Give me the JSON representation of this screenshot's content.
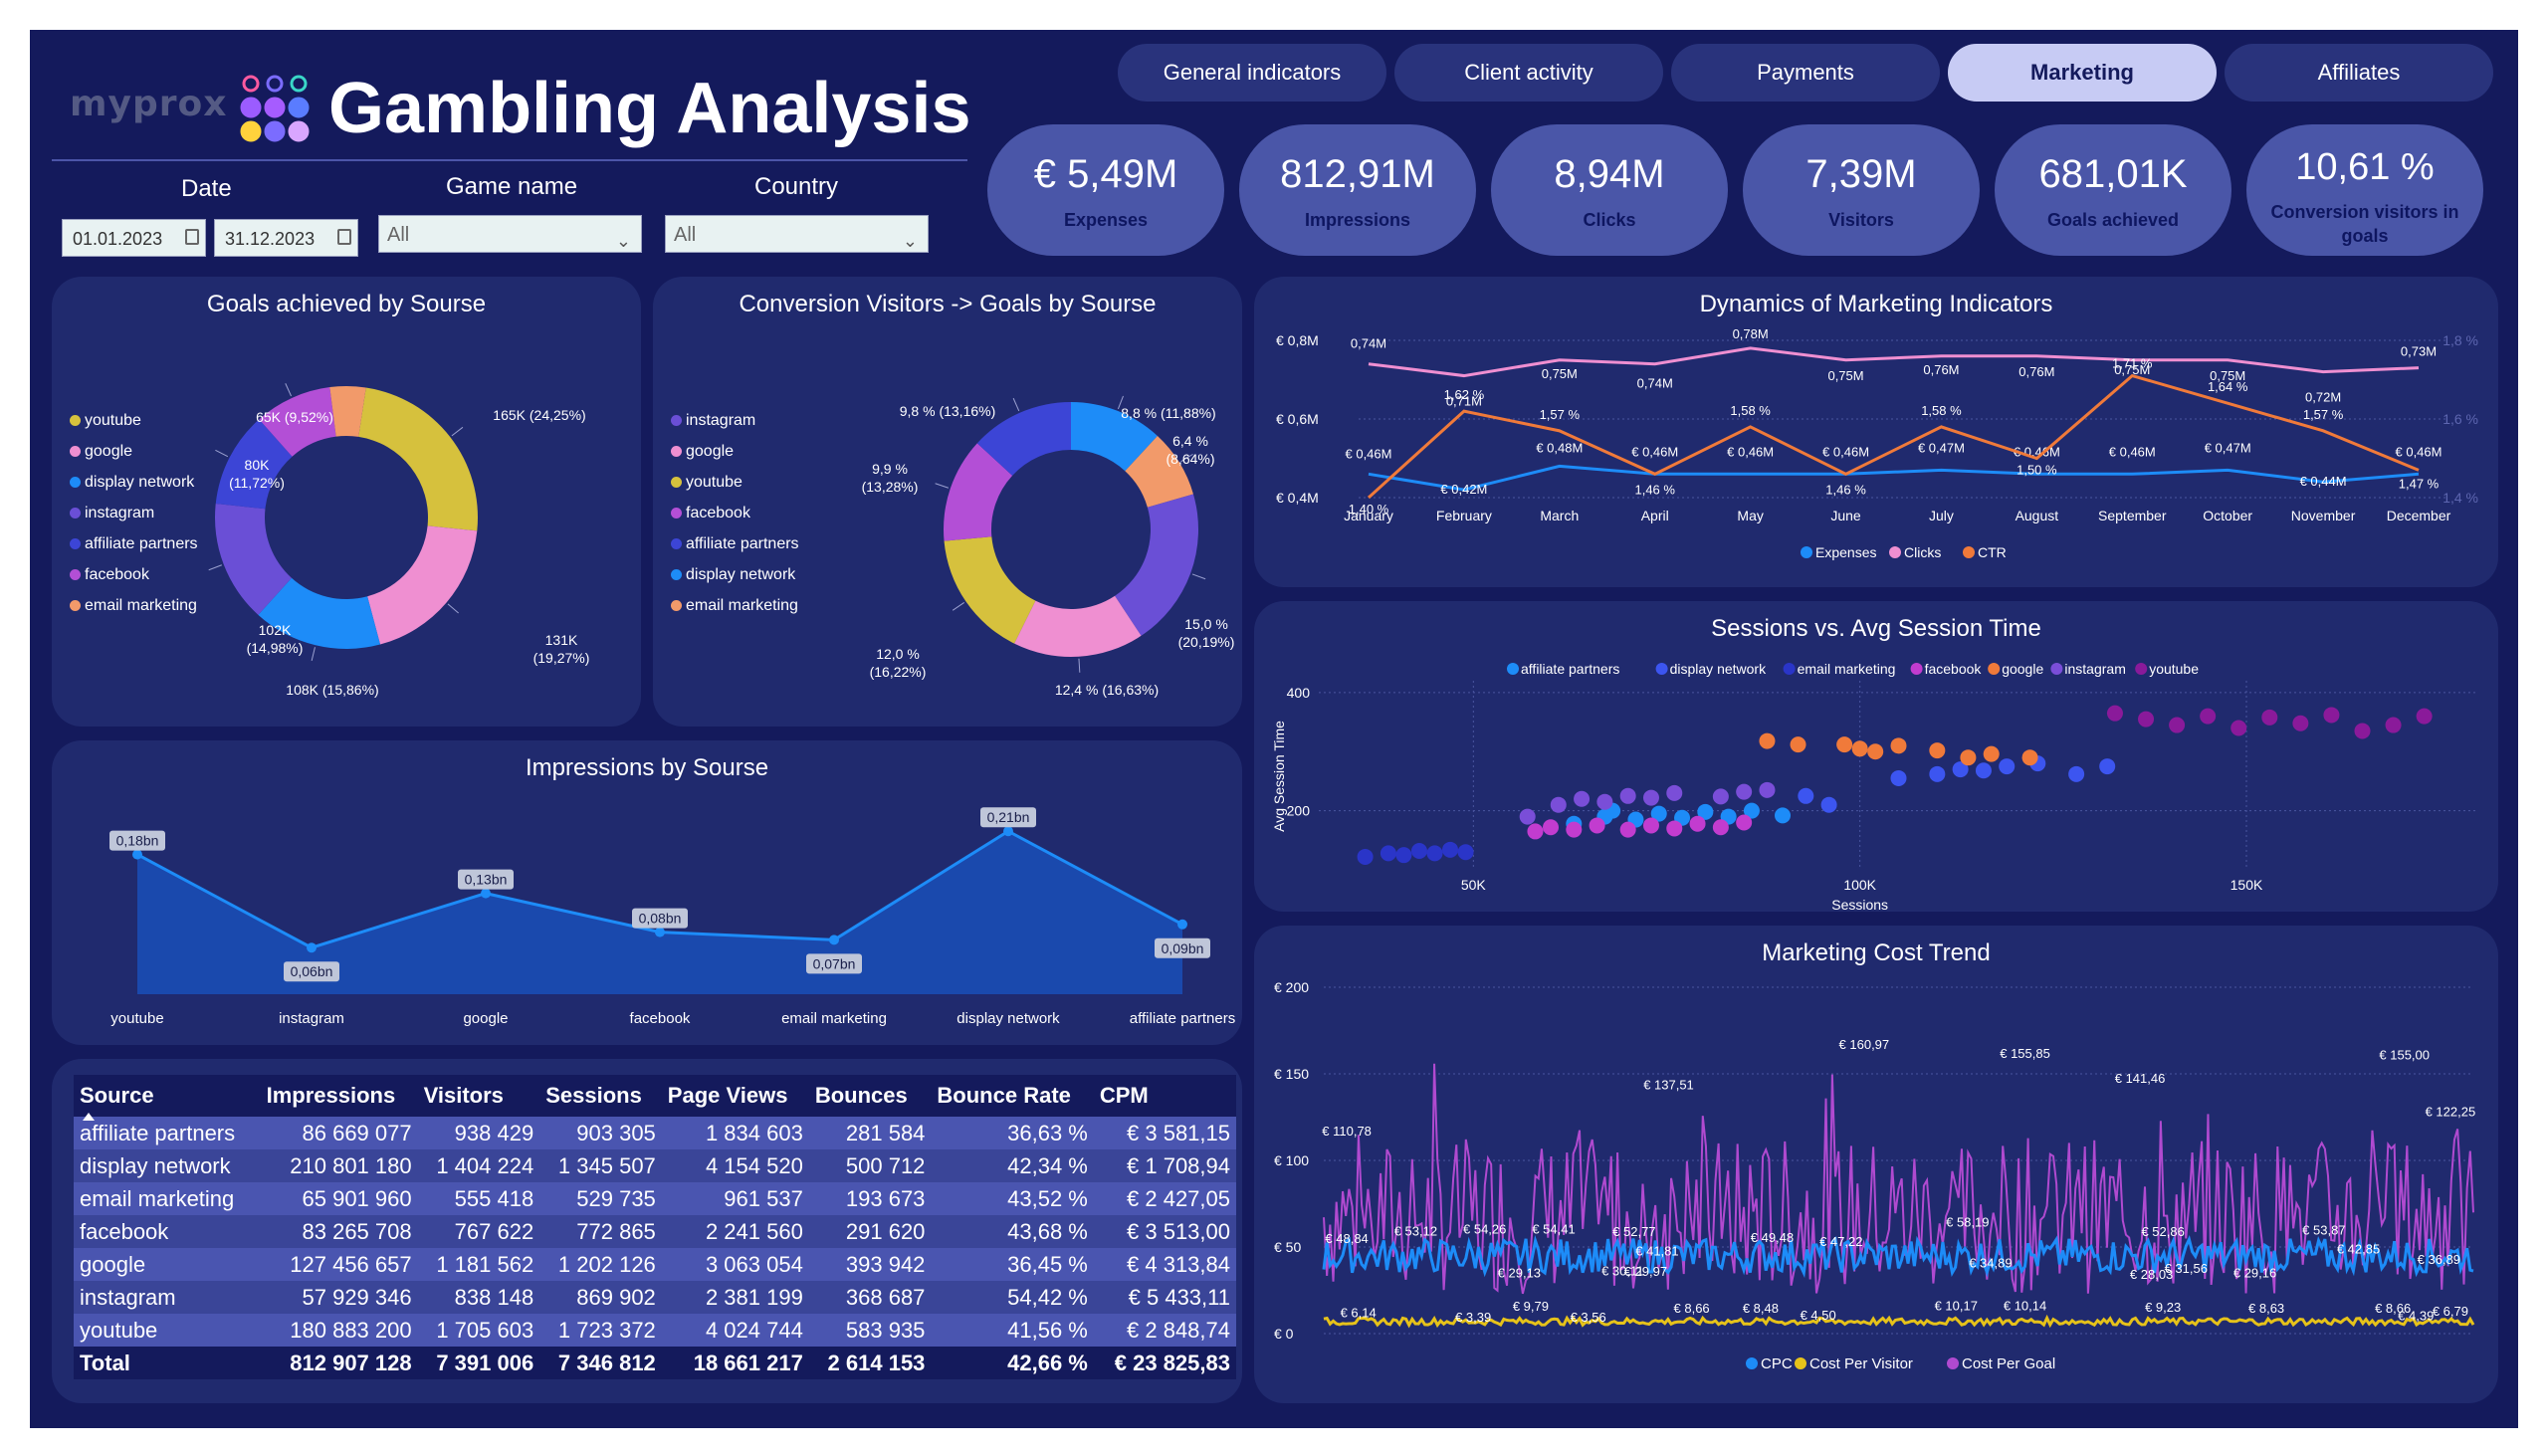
{
  "header": {
    "logo": "myprox",
    "title": "Gambling Analysis",
    "logo_dot_colors": [
      "#ff5aa0",
      "#7b6cff",
      "#3ad6c8",
      "#9b5cff",
      "#a65cff",
      "#5a7cff",
      "#ffd23c",
      "#7b6cff",
      "#d9a6ff"
    ]
  },
  "filters": {
    "date_label": "Date",
    "date_from": "01.01.2023",
    "date_to": "31.12.2023",
    "game_label": "Game name",
    "game_value": "All",
    "country_label": "Country",
    "country_value": "All"
  },
  "tabs": [
    {
      "label": "General indicators",
      "active": false
    },
    {
      "label": "Client activity",
      "active": false
    },
    {
      "label": "Payments",
      "active": false
    },
    {
      "label": "Marketing",
      "active": true
    },
    {
      "label": "Affiliates",
      "active": false
    }
  ],
  "kpis": [
    {
      "value": "€ 5,49M",
      "label": "Expenses"
    },
    {
      "value": "812,91M",
      "label": "Impressions"
    },
    {
      "value": "8,94M",
      "label": "Clicks"
    },
    {
      "value": "7,39M",
      "label": "Visitors"
    },
    {
      "value": "681,01K",
      "label": "Goals achieved"
    },
    {
      "value": "10,61 %",
      "label": "Conversion visitors in goals"
    }
  ],
  "chart_data": [
    {
      "type": "pie",
      "title": "Goals achieved by Sourse",
      "legend": [
        "youtube",
        "google",
        "display network",
        "instagram",
        "affiliate partners",
        "facebook",
        "email marketing"
      ],
      "slices": [
        {
          "name": "youtube",
          "value": 165,
          "label": "165K (24,25%)",
          "color": "#d6c13d"
        },
        {
          "name": "google",
          "value": 131,
          "label": "131K (19,27%)",
          "color": "#ef8fd1"
        },
        {
          "name": "display network",
          "value": 108,
          "label": "108K (15,86%)",
          "color": "#1d8cf8"
        },
        {
          "name": "instagram",
          "value": 102,
          "label": "102K (14,98%)",
          "color": "#6a4fd6"
        },
        {
          "name": "affiliate partners",
          "value": 80,
          "label": "80K (11,72%)",
          "color": "#3c45d6"
        },
        {
          "name": "facebook",
          "value": 65,
          "label": "65K (9,52%)",
          "color": "#b34fd6"
        },
        {
          "name": "email marketing",
          "value": 30,
          "label": "",
          "color": "#f29a6a"
        }
      ]
    },
    {
      "type": "pie",
      "title": "Conversion Visitors -> Goals by Sourse",
      "legend": [
        "instagram",
        "google",
        "youtube",
        "facebook",
        "affiliate partners",
        "display network",
        "email marketing"
      ],
      "slices": [
        {
          "name": "display network",
          "value": 11.88,
          "label": "8,8 % (11,88%)",
          "color": "#1d8cf8"
        },
        {
          "name": "email marketing",
          "value": 8.64,
          "label": "6,4 % (8,64%)",
          "color": "#f29a6a"
        },
        {
          "name": "instagram",
          "value": 20.19,
          "label": "15,0 % (20,19%)",
          "color": "#6a4fd6"
        },
        {
          "name": "google",
          "value": 16.63,
          "label": "12,4 % (16,63%)",
          "color": "#ef8fd1"
        },
        {
          "name": "youtube",
          "value": 16.22,
          "label": "12,0 % (16,22%)",
          "color": "#d6c13d"
        },
        {
          "name": "facebook",
          "value": 13.28,
          "label": "9,9 % (13,28%)",
          "color": "#b34fd6"
        },
        {
          "name": "affiliate partners",
          "value": 13.16,
          "label": "9,8 % (13,16%)",
          "color": "#3c45d6"
        }
      ]
    },
    {
      "type": "line",
      "title": "Dynamics of Marketing Indicators",
      "categories": [
        "January",
        "February",
        "March",
        "April",
        "May",
        "June",
        "July",
        "August",
        "September",
        "October",
        "November",
        "December"
      ],
      "y_ticks": [
        "€ 0,8M",
        "€ 0,6M",
        "€ 0,4M"
      ],
      "y2_ticks": [
        "1,8 %",
        "1,6 %",
        "1,4 %"
      ],
      "ylim": [
        0.4,
        0.8
      ],
      "y2lim": [
        1.4,
        1.8
      ],
      "legend": [
        "Expenses",
        "Clicks",
        "CTR"
      ],
      "series": [
        {
          "name": "Expenses",
          "color": "#1d8cf8",
          "values": [
            0.46,
            0.42,
            0.48,
            0.46,
            0.46,
            0.46,
            0.47,
            0.46,
            0.46,
            0.47,
            0.44,
            0.46
          ],
          "labels": [
            "€ 0,46M",
            "€ 0,42M",
            "€ 0,48M",
            "€ 0,46M",
            "€ 0,46M",
            "€ 0,46M",
            "€ 0,47M",
            "€ 0,46M",
            "€ 0,46M",
            "€ 0,47M",
            "€ 0,44M",
            "€ 0,46M"
          ]
        },
        {
          "name": "Clicks",
          "color": "#ef8fd1",
          "values": [
            0.74,
            0.71,
            0.75,
            0.74,
            0.78,
            0.75,
            0.76,
            0.76,
            0.75,
            0.75,
            0.72,
            0.73
          ],
          "labels": [
            "0,74M",
            "0,71M",
            "0,75M",
            "0,74M",
            "0,78M",
            "0,75M",
            "0,76M",
            "0,76M",
            "0,75M",
            "0,75M",
            "0,72M",
            "0,73M"
          ]
        },
        {
          "name": "CTR",
          "color": "#f07a3a",
          "values": [
            1.4,
            1.62,
            1.57,
            1.46,
            1.58,
            1.46,
            1.58,
            1.5,
            1.71,
            1.64,
            1.57,
            1.47
          ],
          "labels": [
            "1,40 %",
            "1,62 %",
            "1,57 %",
            "1,46 %",
            "1,58 %",
            "1,46 %",
            "1,58 %",
            "1,50 %",
            "1,71 %",
            "1,64 %",
            "1,57 %",
            "1,47 %"
          ]
        }
      ]
    },
    {
      "type": "scatter",
      "title": "Sessions vs. Avg Session Time",
      "xlabel": "Sessions",
      "ylabel": "Avg Session Time",
      "x_ticks": [
        "50K",
        "100K",
        "150K"
      ],
      "y_ticks": [
        "400",
        "200"
      ],
      "xlim": [
        30000,
        180000
      ],
      "ylim": [
        100,
        420
      ],
      "legend": [
        "affiliate partners",
        "display network",
        "email marketing",
        "facebook",
        "google",
        "instagram",
        "youtube"
      ],
      "series": [
        {
          "name": "affiliate partners",
          "color": "#1d8cf8",
          "points": [
            [
              63000,
              178
            ],
            [
              67000,
              190
            ],
            [
              68000,
              200
            ],
            [
              71000,
              185
            ],
            [
              74000,
              195
            ],
            [
              77000,
              188
            ],
            [
              80000,
              198
            ],
            [
              83000,
              190
            ],
            [
              86000,
              200
            ],
            [
              90000,
              192
            ]
          ]
        },
        {
          "name": "display network",
          "color": "#3c55f0",
          "points": [
            [
              93000,
              225
            ],
            [
              96000,
              210
            ],
            [
              105000,
              255
            ],
            [
              110000,
              262
            ],
            [
              113000,
              270
            ],
            [
              116000,
              268
            ],
            [
              119000,
              275
            ],
            [
              123000,
              280
            ],
            [
              128000,
              262
            ],
            [
              132000,
              275
            ]
          ]
        },
        {
          "name": "email marketing",
          "color": "#2a35c8",
          "points": [
            [
              36000,
              122
            ],
            [
              39000,
              128
            ],
            [
              41000,
              125
            ],
            [
              43000,
              132
            ],
            [
              45000,
              128
            ],
            [
              47000,
              134
            ],
            [
              49000,
              130
            ]
          ]
        },
        {
          "name": "facebook",
          "color": "#c23ccf",
          "points": [
            [
              58000,
              165
            ],
            [
              60000,
              172
            ],
            [
              63000,
              168
            ],
            [
              66000,
              175
            ],
            [
              70000,
              168
            ],
            [
              73000,
              175
            ],
            [
              76000,
              170
            ],
            [
              79000,
              178
            ],
            [
              82000,
              172
            ],
            [
              85000,
              180
            ]
          ]
        },
        {
          "name": "google",
          "color": "#f07a3a",
          "points": [
            [
              88000,
              318
            ],
            [
              92000,
              312
            ],
            [
              98000,
              312
            ],
            [
              100000,
              305
            ],
            [
              102000,
              300
            ],
            [
              105000,
              310
            ],
            [
              110000,
              302
            ],
            [
              114000,
              290
            ],
            [
              117000,
              296
            ],
            [
              122000,
              290
            ]
          ]
        },
        {
          "name": "instagram",
          "color": "#7a4ed8",
          "points": [
            [
              57000,
              190
            ],
            [
              61000,
              210
            ],
            [
              64000,
              220
            ],
            [
              67000,
              215
            ],
            [
              70000,
              225
            ],
            [
              73000,
              222
            ],
            [
              76000,
              230
            ],
            [
              82000,
              224
            ],
            [
              85000,
              232
            ],
            [
              88000,
              235
            ]
          ]
        },
        {
          "name": "youtube",
          "color": "#8a1a9a",
          "points": [
            [
              133000,
              365
            ],
            [
              137000,
              355
            ],
            [
              141000,
              345
            ],
            [
              145000,
              360
            ],
            [
              149000,
              340
            ],
            [
              153000,
              358
            ],
            [
              157000,
              348
            ],
            [
              161000,
              362
            ],
            [
              165000,
              335
            ],
            [
              169000,
              345
            ],
            [
              173000,
              360
            ]
          ]
        }
      ]
    },
    {
      "type": "line",
      "title": "Marketing Cost Trend",
      "y_ticks": [
        "€ 200",
        "€ 150",
        "€ 100",
        "€ 50",
        "€ 0"
      ],
      "ylim": [
        0,
        200
      ],
      "legend": [
        "CPC",
        "Cost Per Visitor",
        "Cost Per Goal"
      ],
      "series": [
        {
          "name": "CPC",
          "color": "#1d8cf8",
          "base": 45,
          "amplitude": 10
        },
        {
          "name": "Cost Per Visitor",
          "color": "#e6c21a",
          "base": 7,
          "amplitude": 2
        },
        {
          "name": "Cost Per Goal",
          "color": "#b04ad0",
          "base": 68,
          "amplitude": 45
        }
      ],
      "annotations": [
        {
          "label": "€ 110,78",
          "x": 0.02,
          "y": 110.78
        },
        {
          "label": "€ 48,84",
          "x": 0.02,
          "y": 48.84
        },
        {
          "label": "€ 6,14",
          "x": 0.03,
          "y": 6.14
        },
        {
          "label": "€ 53,12",
          "x": 0.08,
          "y": 53.12
        },
        {
          "label": "€ 3,39",
          "x": 0.13,
          "y": 3.39
        },
        {
          "label": "€ 29,13",
          "x": 0.17,
          "y": 29.13
        },
        {
          "label": "€ 54,26",
          "x": 0.14,
          "y": 54.26
        },
        {
          "label": "€ 9,79",
          "x": 0.18,
          "y": 9.79
        },
        {
          "label": "€ 54,41",
          "x": 0.2,
          "y": 54.41
        },
        {
          "label": "€ 3,56",
          "x": 0.23,
          "y": 3.56
        },
        {
          "label": "€ 137,51",
          "x": 0.3,
          "y": 137.51
        },
        {
          "label": "€ 52,77",
          "x": 0.27,
          "y": 52.77
        },
        {
          "label": "€ 29,97",
          "x": 0.28,
          "y": 29.97
        },
        {
          "label": "€ 30,11",
          "x": 0.26,
          "y": 30.11
        },
        {
          "label": "€ 41,81",
          "x": 0.29,
          "y": 41.81
        },
        {
          "label": "€ 8,66",
          "x": 0.32,
          "y": 8.66
        },
        {
          "label": "€ 8,48",
          "x": 0.38,
          "y": 8.48
        },
        {
          "label": "€ 49,48",
          "x": 0.39,
          "y": 49.48
        },
        {
          "label": "€ 4,50",
          "x": 0.43,
          "y": 4.5
        },
        {
          "label": "€ 160,97",
          "x": 0.47,
          "y": 160.97
        },
        {
          "label": "€ 47,22",
          "x": 0.45,
          "y": 47.22
        },
        {
          "label": "€ 10,17",
          "x": 0.55,
          "y": 10.17
        },
        {
          "label": "€ 58,19",
          "x": 0.56,
          "y": 58.19
        },
        {
          "label": "€ 34,89",
          "x": 0.58,
          "y": 34.89
        },
        {
          "label": "€ 155,85",
          "x": 0.61,
          "y": 155.85
        },
        {
          "label": "€ 10,14",
          "x": 0.61,
          "y": 10.14
        },
        {
          "label": "€ 141,46",
          "x": 0.71,
          "y": 141.46
        },
        {
          "label": "€ 28,03",
          "x": 0.72,
          "y": 28.03
        },
        {
          "label": "€ 31,56",
          "x": 0.75,
          "y": 31.56
        },
        {
          "label": "€ 52,86",
          "x": 0.73,
          "y": 52.86
        },
        {
          "label": "€ 9,23",
          "x": 0.73,
          "y": 9.23
        },
        {
          "label": "€ 29,16",
          "x": 0.81,
          "y": 29.16
        },
        {
          "label": "€ 8,63",
          "x": 0.82,
          "y": 8.63
        },
        {
          "label": "€ 53,87",
          "x": 0.87,
          "y": 53.87
        },
        {
          "label": "€ 42,85",
          "x": 0.9,
          "y": 42.85
        },
        {
          "label": "€ 8,66",
          "x": 0.93,
          "y": 8.66
        },
        {
          "label": "€ 155,00",
          "x": 0.94,
          "y": 155.0
        },
        {
          "label": "€ 122,25",
          "x": 0.98,
          "y": 122.25
        },
        {
          "label": "€ 36,89",
          "x": 0.97,
          "y": 36.89
        },
        {
          "label": "€ 4,39",
          "x": 0.95,
          "y": 4.39
        },
        {
          "label": "€ 6,79",
          "x": 0.98,
          "y": 6.79
        }
      ]
    },
    {
      "type": "area",
      "title": "Impressions by Sourse",
      "categories": [
        "youtube",
        "instagram",
        "google",
        "facebook",
        "email marketing",
        "display network",
        "affiliate partners"
      ],
      "values": [
        0.18,
        0.06,
        0.13,
        0.08,
        0.07,
        0.21,
        0.09
      ],
      "labels": [
        "0,18bn",
        "0,06bn",
        "0,13bn",
        "0,08bn",
        "0,07bn",
        "0,21bn",
        "0,09bn"
      ],
      "ylim": [
        0,
        0.25
      ],
      "color": "#1d8cf8"
    }
  ],
  "table": {
    "columns": [
      "Source",
      "Impressions",
      "Visitors",
      "Sessions",
      "Page Views",
      "Bounces",
      "Bounce Rate",
      "CPM"
    ],
    "rows": [
      [
        "affiliate partners",
        "86 669 077",
        "938 429",
        "903 305",
        "1 834 603",
        "281 584",
        "36,63 %",
        "€ 3 581,15"
      ],
      [
        "display network",
        "210 801 180",
        "1 404 224",
        "1 345 507",
        "4 154 520",
        "500 712",
        "42,34 %",
        "€ 1 708,94"
      ],
      [
        "email marketing",
        "65 901 960",
        "555 418",
        "529 735",
        "961 537",
        "193 673",
        "43,52 %",
        "€ 2 427,05"
      ],
      [
        "facebook",
        "83 265 708",
        "767 622",
        "772 865",
        "2 241 560",
        "291 620",
        "43,68 %",
        "€ 3 513,00"
      ],
      [
        "google",
        "127 456 657",
        "1 181 562",
        "1 202 126",
        "3 063 054",
        "393 942",
        "36,45 %",
        "€ 4 313,84"
      ],
      [
        "instagram",
        "57 929 346",
        "838 148",
        "869 902",
        "2 381 199",
        "368 687",
        "54,42 %",
        "€ 5 433,11"
      ],
      [
        "youtube",
        "180 883 200",
        "1 705 603",
        "1 723 372",
        "4 024 744",
        "583 935",
        "41,56 %",
        "€ 2 848,74"
      ]
    ],
    "total": [
      "Total",
      "812 907 128",
      "7 391 006",
      "7 346 812",
      "18 661 217",
      "2 614 153",
      "42,66 %",
      "€ 23 825,83"
    ]
  }
}
